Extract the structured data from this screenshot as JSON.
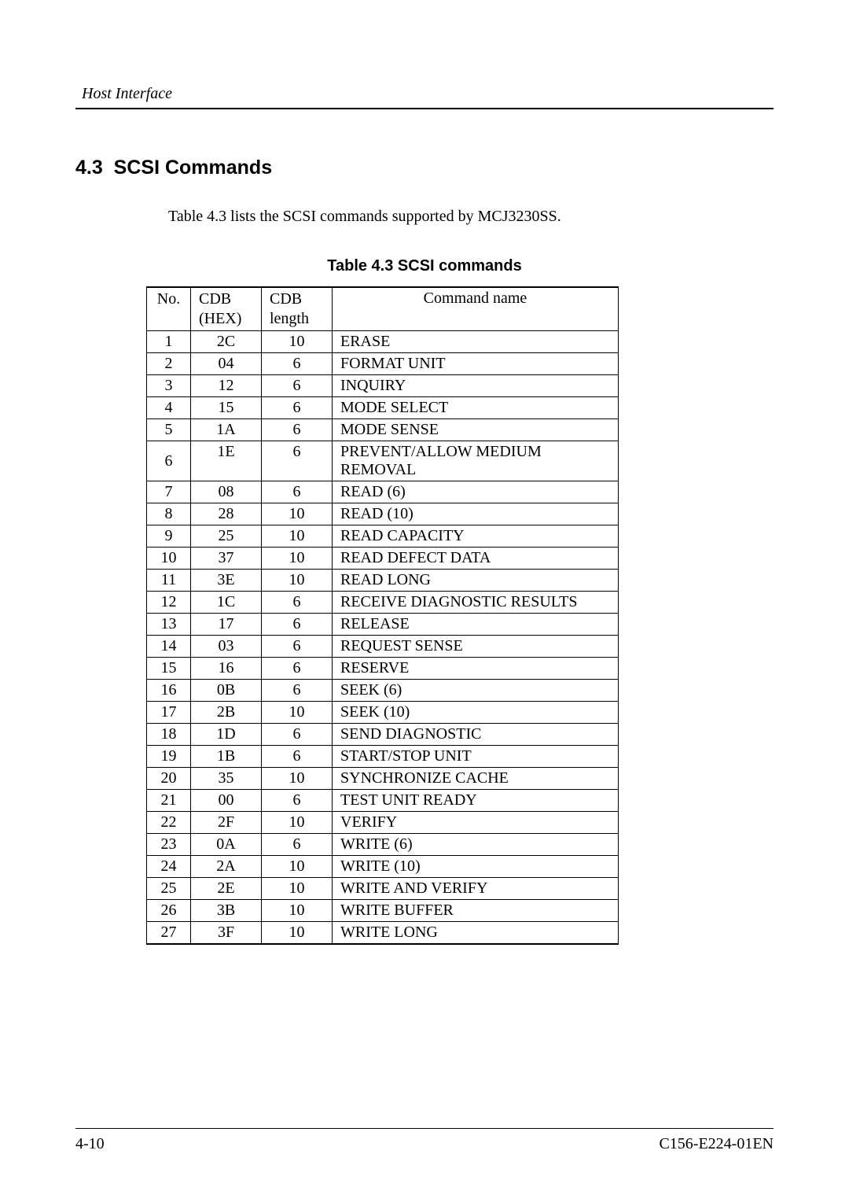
{
  "header": {
    "title": "Host Interface"
  },
  "section": {
    "number": "4.3",
    "title": "SCSI Commands",
    "intro": "Table 4.3 lists the SCSI commands supported by MCJ3230SS."
  },
  "table": {
    "caption": "Table 4.3  SCSI commands",
    "columns": {
      "no": "No.",
      "cdb_hex_l1": "CDB",
      "cdb_hex_l2": "(HEX)",
      "cdb_len_l1": "CDB",
      "cdb_len_l2": "length",
      "cmd": "Command name"
    },
    "rows": [
      {
        "no": "1",
        "hex": "2C",
        "len": "10",
        "cmd": "ERASE"
      },
      {
        "no": "2",
        "hex": "04",
        "len": "6",
        "cmd": "FORMAT UNIT"
      },
      {
        "no": "3",
        "hex": "12",
        "len": "6",
        "cmd": "INQUIRY"
      },
      {
        "no": "4",
        "hex": "15",
        "len": "6",
        "cmd": "MODE SELECT"
      },
      {
        "no": "5",
        "hex": "1A",
        "len": "6",
        "cmd": "MODE SENSE"
      },
      {
        "no": "6",
        "hex": "1E",
        "len": "6",
        "cmd": "PREVENT/ALLOW MEDIUM REMOVAL"
      },
      {
        "no": "7",
        "hex": "08",
        "len": "6",
        "cmd": "READ (6)"
      },
      {
        "no": "8",
        "hex": "28",
        "len": "10",
        "cmd": "READ (10)"
      },
      {
        "no": "9",
        "hex": "25",
        "len": "10",
        "cmd": "READ CAPACITY"
      },
      {
        "no": "10",
        "hex": "37",
        "len": "10",
        "cmd": "READ DEFECT DATA"
      },
      {
        "no": "11",
        "hex": "3E",
        "len": "10",
        "cmd": "READ LONG"
      },
      {
        "no": "12",
        "hex": "1C",
        "len": "6",
        "cmd": "RECEIVE DIAGNOSTIC RESULTS"
      },
      {
        "no": "13",
        "hex": "17",
        "len": "6",
        "cmd": "RELEASE"
      },
      {
        "no": "14",
        "hex": "03",
        "len": "6",
        "cmd": "REQUEST SENSE"
      },
      {
        "no": "15",
        "hex": "16",
        "len": "6",
        "cmd": "RESERVE"
      },
      {
        "no": "16",
        "hex": "0B",
        "len": "6",
        "cmd": "SEEK (6)"
      },
      {
        "no": "17",
        "hex": "2B",
        "len": "10",
        "cmd": "SEEK (10)"
      },
      {
        "no": "18",
        "hex": "1D",
        "len": "6",
        "cmd": "SEND DIAGNOSTIC"
      },
      {
        "no": "19",
        "hex": "1B",
        "len": "6",
        "cmd": "START/STOP UNIT"
      },
      {
        "no": "20",
        "hex": "35",
        "len": "10",
        "cmd": "SYNCHRONIZE CACHE"
      },
      {
        "no": "21",
        "hex": "00",
        "len": "6",
        "cmd": "TEST UNIT READY"
      },
      {
        "no": "22",
        "hex": "2F",
        "len": "10",
        "cmd": "VERIFY"
      },
      {
        "no": "23",
        "hex": "0A",
        "len": "6",
        "cmd": "WRITE (6)"
      },
      {
        "no": "24",
        "hex": "2A",
        "len": "10",
        "cmd": "WRITE (10)"
      },
      {
        "no": "25",
        "hex": "2E",
        "len": "10",
        "cmd": "WRITE AND VERIFY"
      },
      {
        "no": "26",
        "hex": "3B",
        "len": "10",
        "cmd": "WRITE BUFFER"
      },
      {
        "no": "27",
        "hex": "3F",
        "len": "10",
        "cmd": "WRITE LONG"
      }
    ]
  },
  "footer": {
    "page": "4-10",
    "docref": "C156-E224-01EN"
  }
}
